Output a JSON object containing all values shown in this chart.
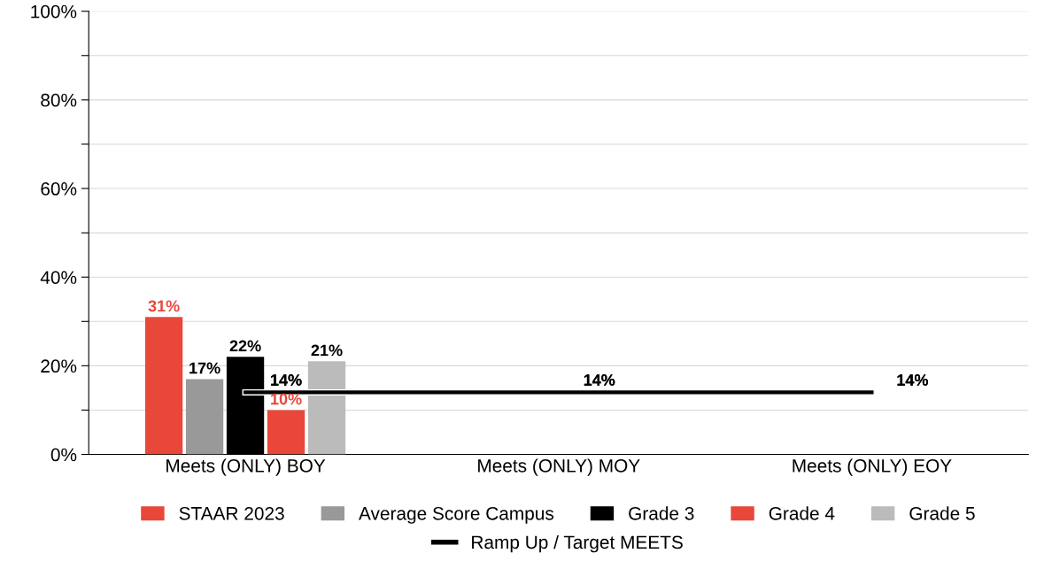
{
  "chart_data": {
    "type": "bar",
    "categories": [
      "Meets (ONLY) BOY",
      "Meets (ONLY) MOY",
      "Meets (ONLY) EOY"
    ],
    "series": [
      {
        "name": "STAAR 2023",
        "color": "#e8473a",
        "values": [
          31,
          null,
          null
        ],
        "value_labels": [
          "31%",
          null,
          null
        ]
      },
      {
        "name": "Average Score Campus",
        "color": "#999999",
        "values": [
          17,
          null,
          null
        ],
        "value_labels": [
          "17%",
          null,
          null
        ]
      },
      {
        "name": "Grade 3",
        "color": "#000000",
        "values": [
          22,
          null,
          null
        ],
        "value_labels": [
          "22%",
          null,
          null
        ]
      },
      {
        "name": "Grade 4",
        "color": "#e8473a",
        "values": [
          10,
          null,
          null
        ],
        "value_labels": [
          "10%",
          null,
          null
        ]
      },
      {
        "name": "Grade 5",
        "color": "#bbbbbb",
        "values": [
          21,
          null,
          null
        ],
        "value_labels": [
          "21%",
          null,
          null
        ]
      },
      {
        "name": "Ramp Up / Target MEETS",
        "type": "line",
        "marker": "none",
        "color": "#000000",
        "values": [
          14,
          14,
          14
        ],
        "value_labels": [
          "14%",
          "14%",
          "14%"
        ]
      }
    ],
    "ylim": [
      0,
      100
    ],
    "yticks": [
      {
        "value": 0,
        "label": "0%"
      },
      {
        "value": 10,
        "label": null
      },
      {
        "value": 20,
        "label": "20%"
      },
      {
        "value": 30,
        "label": null
      },
      {
        "value": 40,
        "label": "40%"
      },
      {
        "value": 50,
        "label": null
      },
      {
        "value": 60,
        "label": "60%"
      },
      {
        "value": 70,
        "label": null
      },
      {
        "value": 80,
        "label": "80%"
      },
      {
        "value": 90,
        "label": null
      },
      {
        "value": 100,
        "label": "100%"
      }
    ],
    "grid": "y",
    "legend": "bottom"
  }
}
